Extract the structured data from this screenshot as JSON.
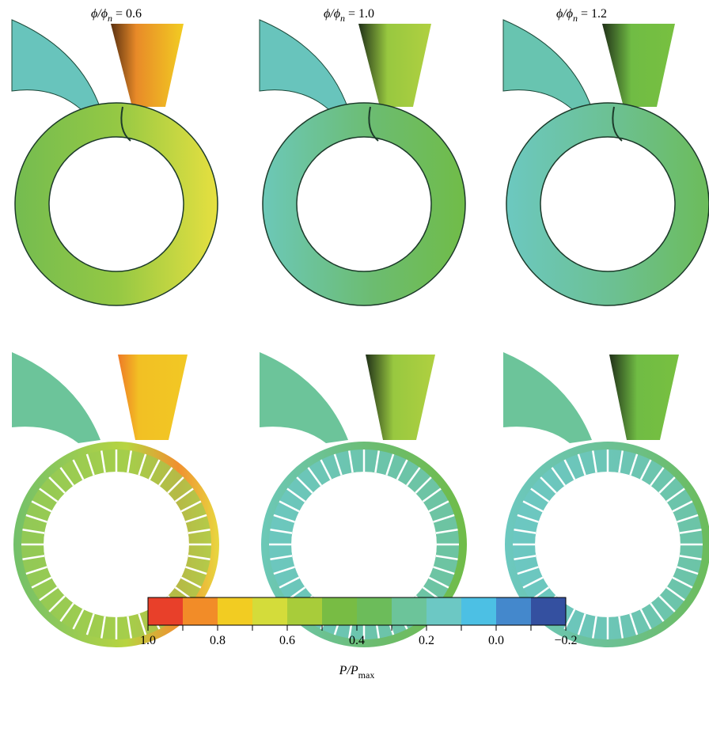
{
  "panels": [
    {
      "title": {
        "main": "ϕ/ϕ",
        "sub": "n",
        "rest": " = 0.6"
      }
    },
    {
      "title": {
        "main": "ϕ/ϕ",
        "sub": "n",
        "rest": " = 1.0"
      }
    },
    {
      "title": {
        "main": "ϕ/ϕ",
        "sub": "n",
        "rest": " = 1.2"
      }
    }
  ],
  "colorbar": {
    "colors": [
      "#e8402a",
      "#f28c28",
      "#f2cc22",
      "#d4dc3a",
      "#a8cc3a",
      "#78bc44",
      "#6cbc5a",
      "#6cc49a",
      "#6cc8c4",
      "#4cc0e4",
      "#4488cc",
      "#3450a0"
    ],
    "lim": [
      1,
      -0.2
    ],
    "ticks": [
      {
        "value": 1,
        "label": "1.0"
      },
      0.8,
      0.6,
      0.4,
      0.2,
      {
        "value": 0,
        "label": "0.0"
      },
      {
        "value": -0.2,
        "label": "−0.2"
      }
    ],
    "minor_ticks": [
      0.9,
      0.7,
      0.5,
      0.3,
      0.1,
      -0.1
    ],
    "label": {
      "main": "P/P",
      "sub": "max"
    }
  }
}
